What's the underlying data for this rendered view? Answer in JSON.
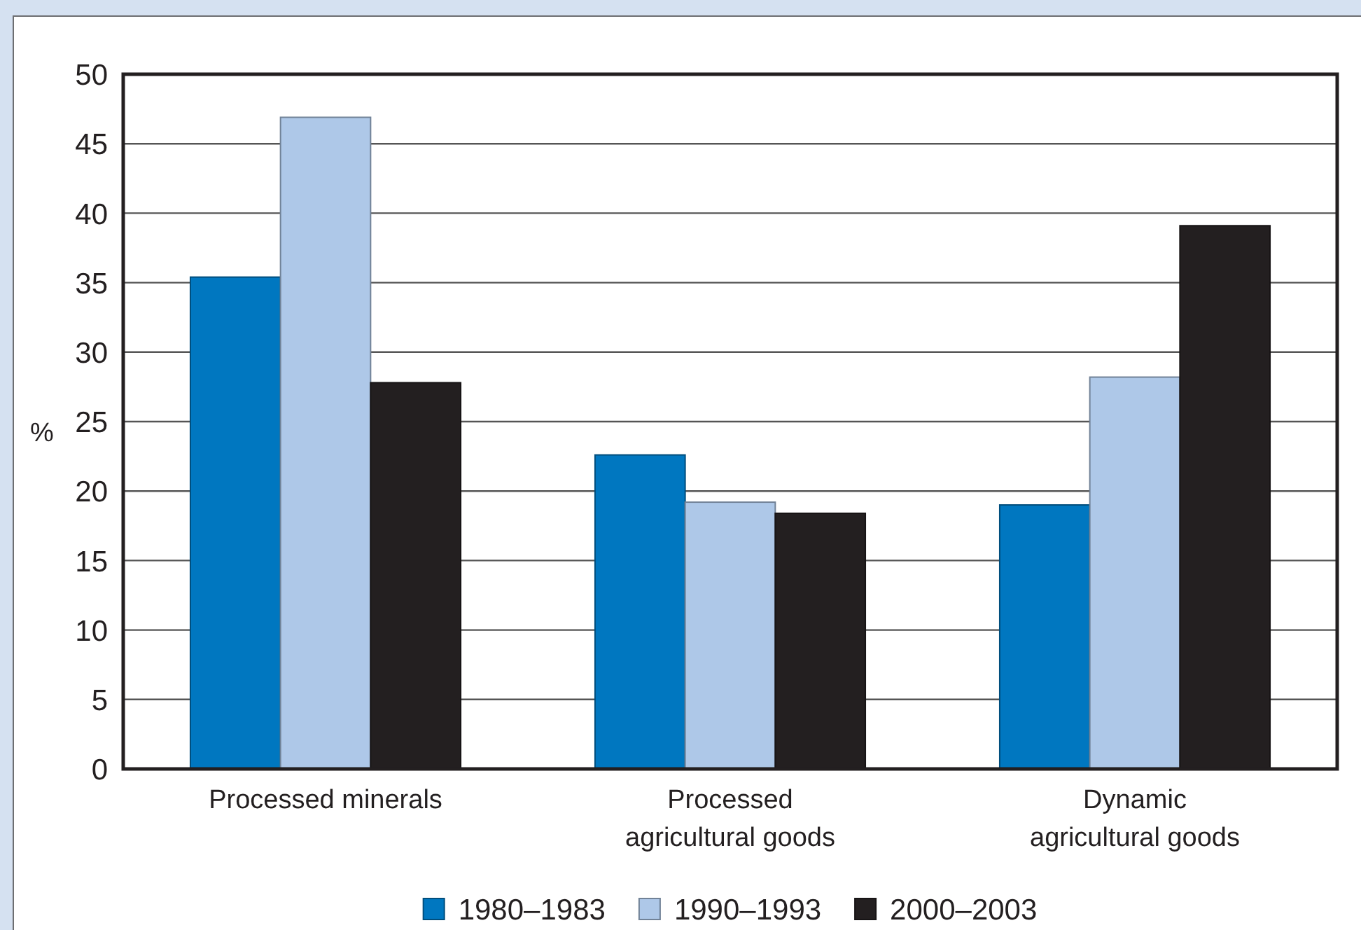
{
  "chart_data": {
    "type": "bar",
    "ylabel": "%",
    "categories": [
      "Processed minerals",
      "Processed agricultural goods",
      "Dynamic agricultural goods"
    ],
    "series": [
      {
        "name": "1980–1983",
        "color": "#0077c0",
        "values": [
          35.4,
          22.6,
          19.0
        ]
      },
      {
        "name": "1990–1993",
        "color": "#aec8e8",
        "values": [
          46.9,
          19.2,
          28.2
        ]
      },
      {
        "name": "2000–2003",
        "color": "#231f20",
        "values": [
          27.8,
          18.4,
          39.1
        ]
      }
    ],
    "ylim": [
      0,
      50
    ],
    "yticks": [
      0,
      5,
      10,
      15,
      20,
      25,
      30,
      35,
      40,
      45,
      50
    ],
    "grid": "y",
    "legend": "bottom"
  }
}
